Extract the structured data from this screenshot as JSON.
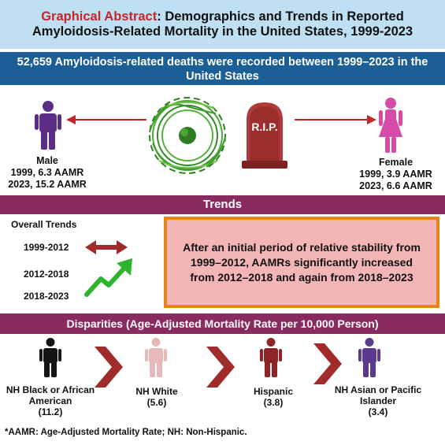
{
  "title": {
    "highlight": "Graphical Abstract",
    "rest": ": Demographics and Trends in Reported Amyloidosis-Related Mortality in the United States, 1999-2023"
  },
  "headline": "52,659 Amyloidosis-related deaths were recorded  between 1999–2023 in the United States",
  "male": {
    "label": "Male",
    "line1": "1999, 6.3 AAMR",
    "line2": "2023, 15.2 AAMR",
    "color": "#5b2d86"
  },
  "female": {
    "label": "Female",
    "line1": "1999, 3.9 AAMR",
    "line2": "2023, 6.6 AAMR",
    "color": "#d64aa8"
  },
  "tombstone_text": "R.I.P.",
  "trends": {
    "header": "Trends",
    "overall": "Overall Trends",
    "periods": [
      "1999-2012",
      "2012-2018",
      "2018-2023"
    ],
    "callout": "After an initial period of relative stability from 1999–2012, AAMRs significantly increased from 2012–2018 and again from 2018–2023"
  },
  "disparities": {
    "header": "Disparities (Age-Adjusted Mortality Rate per 10,000 Person)",
    "groups": [
      {
        "name": "NH Black or African American",
        "value": "(11.2)",
        "color": "#141414"
      },
      {
        "name": "NH White",
        "value": "(5.6)",
        "color": "#e6b8b8"
      },
      {
        "name": "Hispanic",
        "value": "(3.8)",
        "color": "#8e2424"
      },
      {
        "name": "NH Asian or Pacific Islander",
        "value": "(3.4)",
        "color": "#5b3a8e"
      }
    ]
  },
  "footnote": "*AAMR: Age-Adjusted Mortality Rate; NH: Non-Hispanic.",
  "colors": {
    "title_bg": "#bfe0f3",
    "headline_bg": "#1c5f96",
    "maroon": "#8a2b5f",
    "callout_bg": "#f4b5b7",
    "callout_border": "#e8821a",
    "chevron": "#a12a2a",
    "up_arrow": "#2db52d"
  }
}
